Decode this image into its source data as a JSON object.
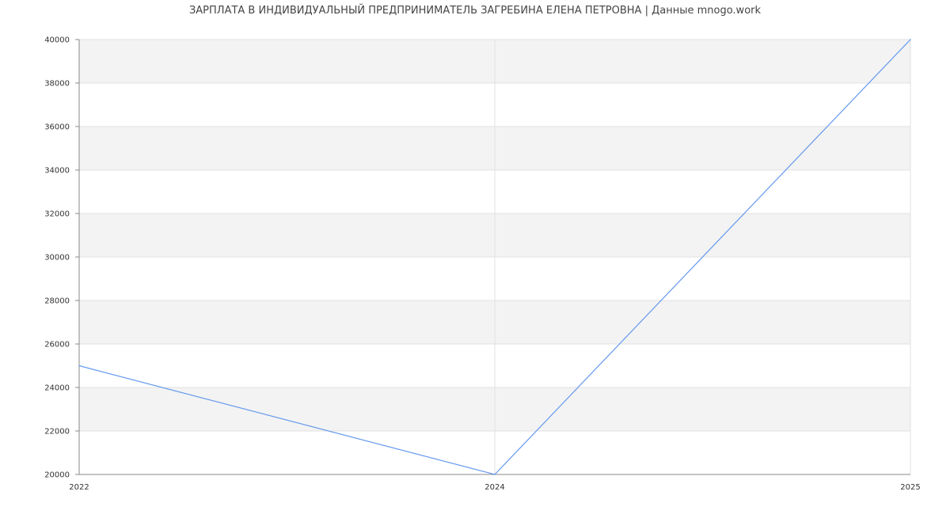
{
  "chart_data": {
    "type": "line",
    "title": "ЗАРПЛАТА В ИНДИВИДУАЛЬНЫЙ ПРЕДПРИНИМАТЕЛЬ ЗАГРЕБИНА ЕЛЕНА ПЕТРОВНА | Данные mnogo.work",
    "categories": [
      "2022",
      "2024",
      "2025"
    ],
    "series": [
      {
        "values": [
          25000,
          20000,
          40000
        ],
        "color": "#6699ee"
      }
    ],
    "ylim": [
      20000,
      40000
    ],
    "yticks": [
      20000,
      22000,
      24000,
      26000,
      28000,
      30000,
      32000,
      34000,
      36000,
      38000,
      40000
    ],
    "grid": true,
    "band_color": "#f3f3f3",
    "xlabel": "",
    "ylabel": ""
  }
}
